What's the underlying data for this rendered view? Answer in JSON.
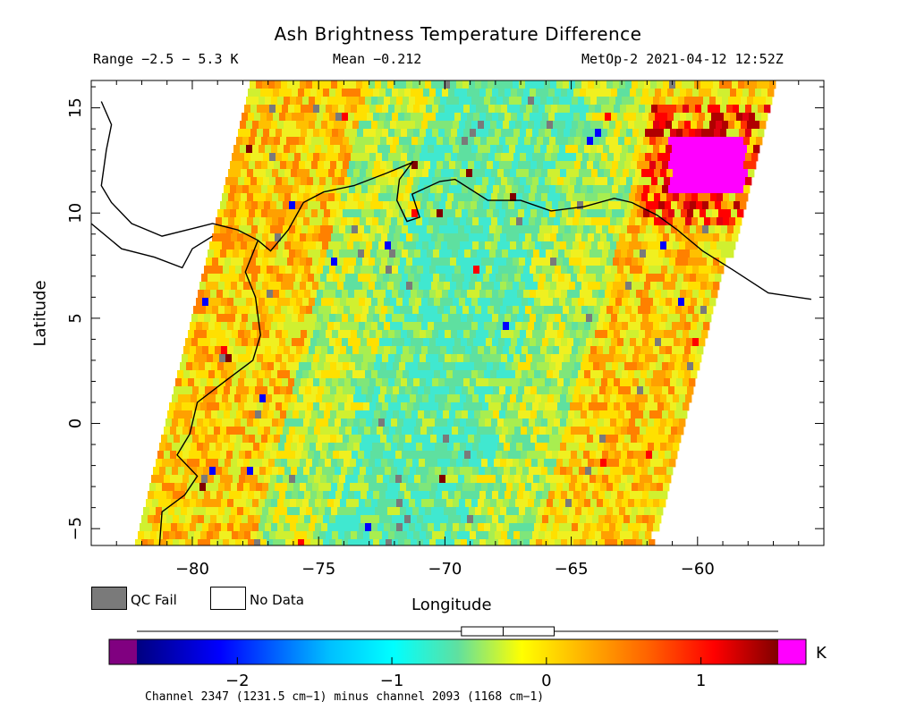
{
  "header": {
    "title": "Ash Brightness Temperature Difference",
    "range": "Range −2.5 − 5.3 K",
    "mean": "Mean −0.212",
    "satellite": "MetOp-2 2021-04-12 12:52Z"
  },
  "map": {
    "x_label": "Longitude",
    "y_label": "Latitude",
    "lon_range": [
      -84,
      -55
    ],
    "lat_range": [
      -5.8,
      16.3
    ],
    "x_ticks": [
      -80,
      -75,
      -70,
      -65,
      -60
    ],
    "x_tick_labels": [
      "−80",
      "−75",
      "−70",
      "−65",
      "−60"
    ],
    "y_ticks": [
      -5,
      0,
      5,
      10,
      15
    ],
    "y_tick_labels": [
      "−5",
      "0",
      "5",
      "10",
      "15"
    ],
    "swath": {
      "bottom_lon": [
        -82.3,
        -62.0
      ],
      "top_lon": [
        -77.7,
        -57.0
      ],
      "ash_region": {
        "lon": [
          -61.2,
          -58.2
        ],
        "lat": [
          11.0,
          13.8
        ]
      }
    }
  },
  "legend": {
    "qc_fail": "QC Fail",
    "no_data": "No Data"
  },
  "colorbar": {
    "unit": "K",
    "range": [
      -2.65,
      1.5
    ],
    "ticks": [
      -2,
      -1,
      0,
      1
    ],
    "tick_labels": [
      "−2",
      "−1",
      "0",
      "1"
    ],
    "colors": {
      "under": "#800080",
      "over": "#ff00ff",
      "qc_fail": "#7a7a7a"
    },
    "box_range": [
      -0.55,
      0.05
    ],
    "box_median": -0.28
  },
  "footer": "Channel 2347 (1231.5 cm−1) minus channel 2093 (1168 cm−1)"
}
